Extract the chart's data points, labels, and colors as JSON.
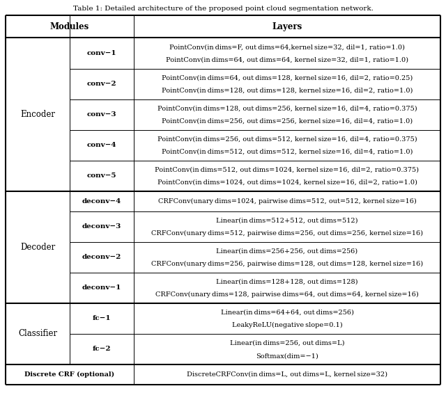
{
  "title": "Table 1: Detailed architecture of the proposed point cloud segmentation network.",
  "col_headers": [
    "Modules",
    "Layers"
  ],
  "sections": [
    {
      "module_label": "Encoder",
      "rows": [
        {
          "sub_label": "conv−1",
          "lines": [
            "PointConv(in dims=F, out dims=64,kernel size=32, dil=1, ratio=1.0)",
            "PointConv(in dims=64, out dims=64, kernel size=32, dil=1, ratio=1.0)"
          ]
        },
        {
          "sub_label": "conv−2",
          "lines": [
            "PointConv(in dims=64, out dims=128, kernel size=16, dil=2, ratio=0.25)",
            "PointConv(in dims=128, out dims=128, kernel size=16, dil=2, ratio=1.0)"
          ]
        },
        {
          "sub_label": "conv−3",
          "lines": [
            "PointConv(in dims=128, out dims=256, kernel size=16, dil=4, ratio=0.375)",
            "PointConv(in dims=256, out dims=256, kernel size=16, dil=4, ratio=1.0)"
          ]
        },
        {
          "sub_label": "conv−4",
          "lines": [
            "PointConv(in dims=256, out dims=512, kernel size=16, dil=4, ratio=0.375)",
            "PointConv(in dims=512, out dims=512, kernel size=16, dil=4, ratio=1.0)"
          ]
        },
        {
          "sub_label": "conv−5",
          "lines": [
            "PointConv(in dims=512, out dims=1024, kernel size=16, dil=2, ratio=0.375)",
            "PointConv(in dims=1024, out dims=1024, kernel size=16, dil=2, ratio=1.0)"
          ]
        }
      ]
    },
    {
      "module_label": "Decoder",
      "rows": [
        {
          "sub_label": "deconv−4",
          "lines": [
            "CRFConv(unary dims=1024, pairwise dims=512, out=512, kernel size=16)"
          ]
        },
        {
          "sub_label": "deconv−3",
          "lines": [
            "Linear(in dims=512+512, out dims=512)",
            "CRFConv(unary dims=512, pairwise dims=256, out dims=256, kernel size=16)"
          ]
        },
        {
          "sub_label": "deconv−2",
          "lines": [
            "Linear(in dims=256+256, out dims=256)",
            "CRFConv(unary dims=256, pairwise dims=128, out dims=128, kernel size=16)"
          ]
        },
        {
          "sub_label": "deconv−1",
          "lines": [
            "Linear(in dims=128+128, out dims=128)",
            "CRFConv(unary dims=128, pairwise dims=64, out dims=64, kernel size=16)"
          ]
        }
      ]
    },
    {
      "module_label": "Classifier",
      "rows": [
        {
          "sub_label": "fc−1",
          "lines": [
            "Linear(in dims=64+64, out dims=256)",
            "LeakyReLU(negative slope=0.1)"
          ]
        },
        {
          "sub_label": "fc−2",
          "lines": [
            "Linear(in dims=256, out dims=L)",
            "Softmax(dim=−1)"
          ]
        }
      ]
    }
  ],
  "bottom_row": {
    "label": "Discrete CRF (optional)",
    "lines": [
      "DiscreteCRFConv(in dims=L, out dims=L, kernel size=32)"
    ]
  },
  "font_size_title": 7.5,
  "font_size_header": 8.5,
  "font_size_body": 7.0,
  "font_size_sublabel": 7.5,
  "font_size_module": 8.5
}
